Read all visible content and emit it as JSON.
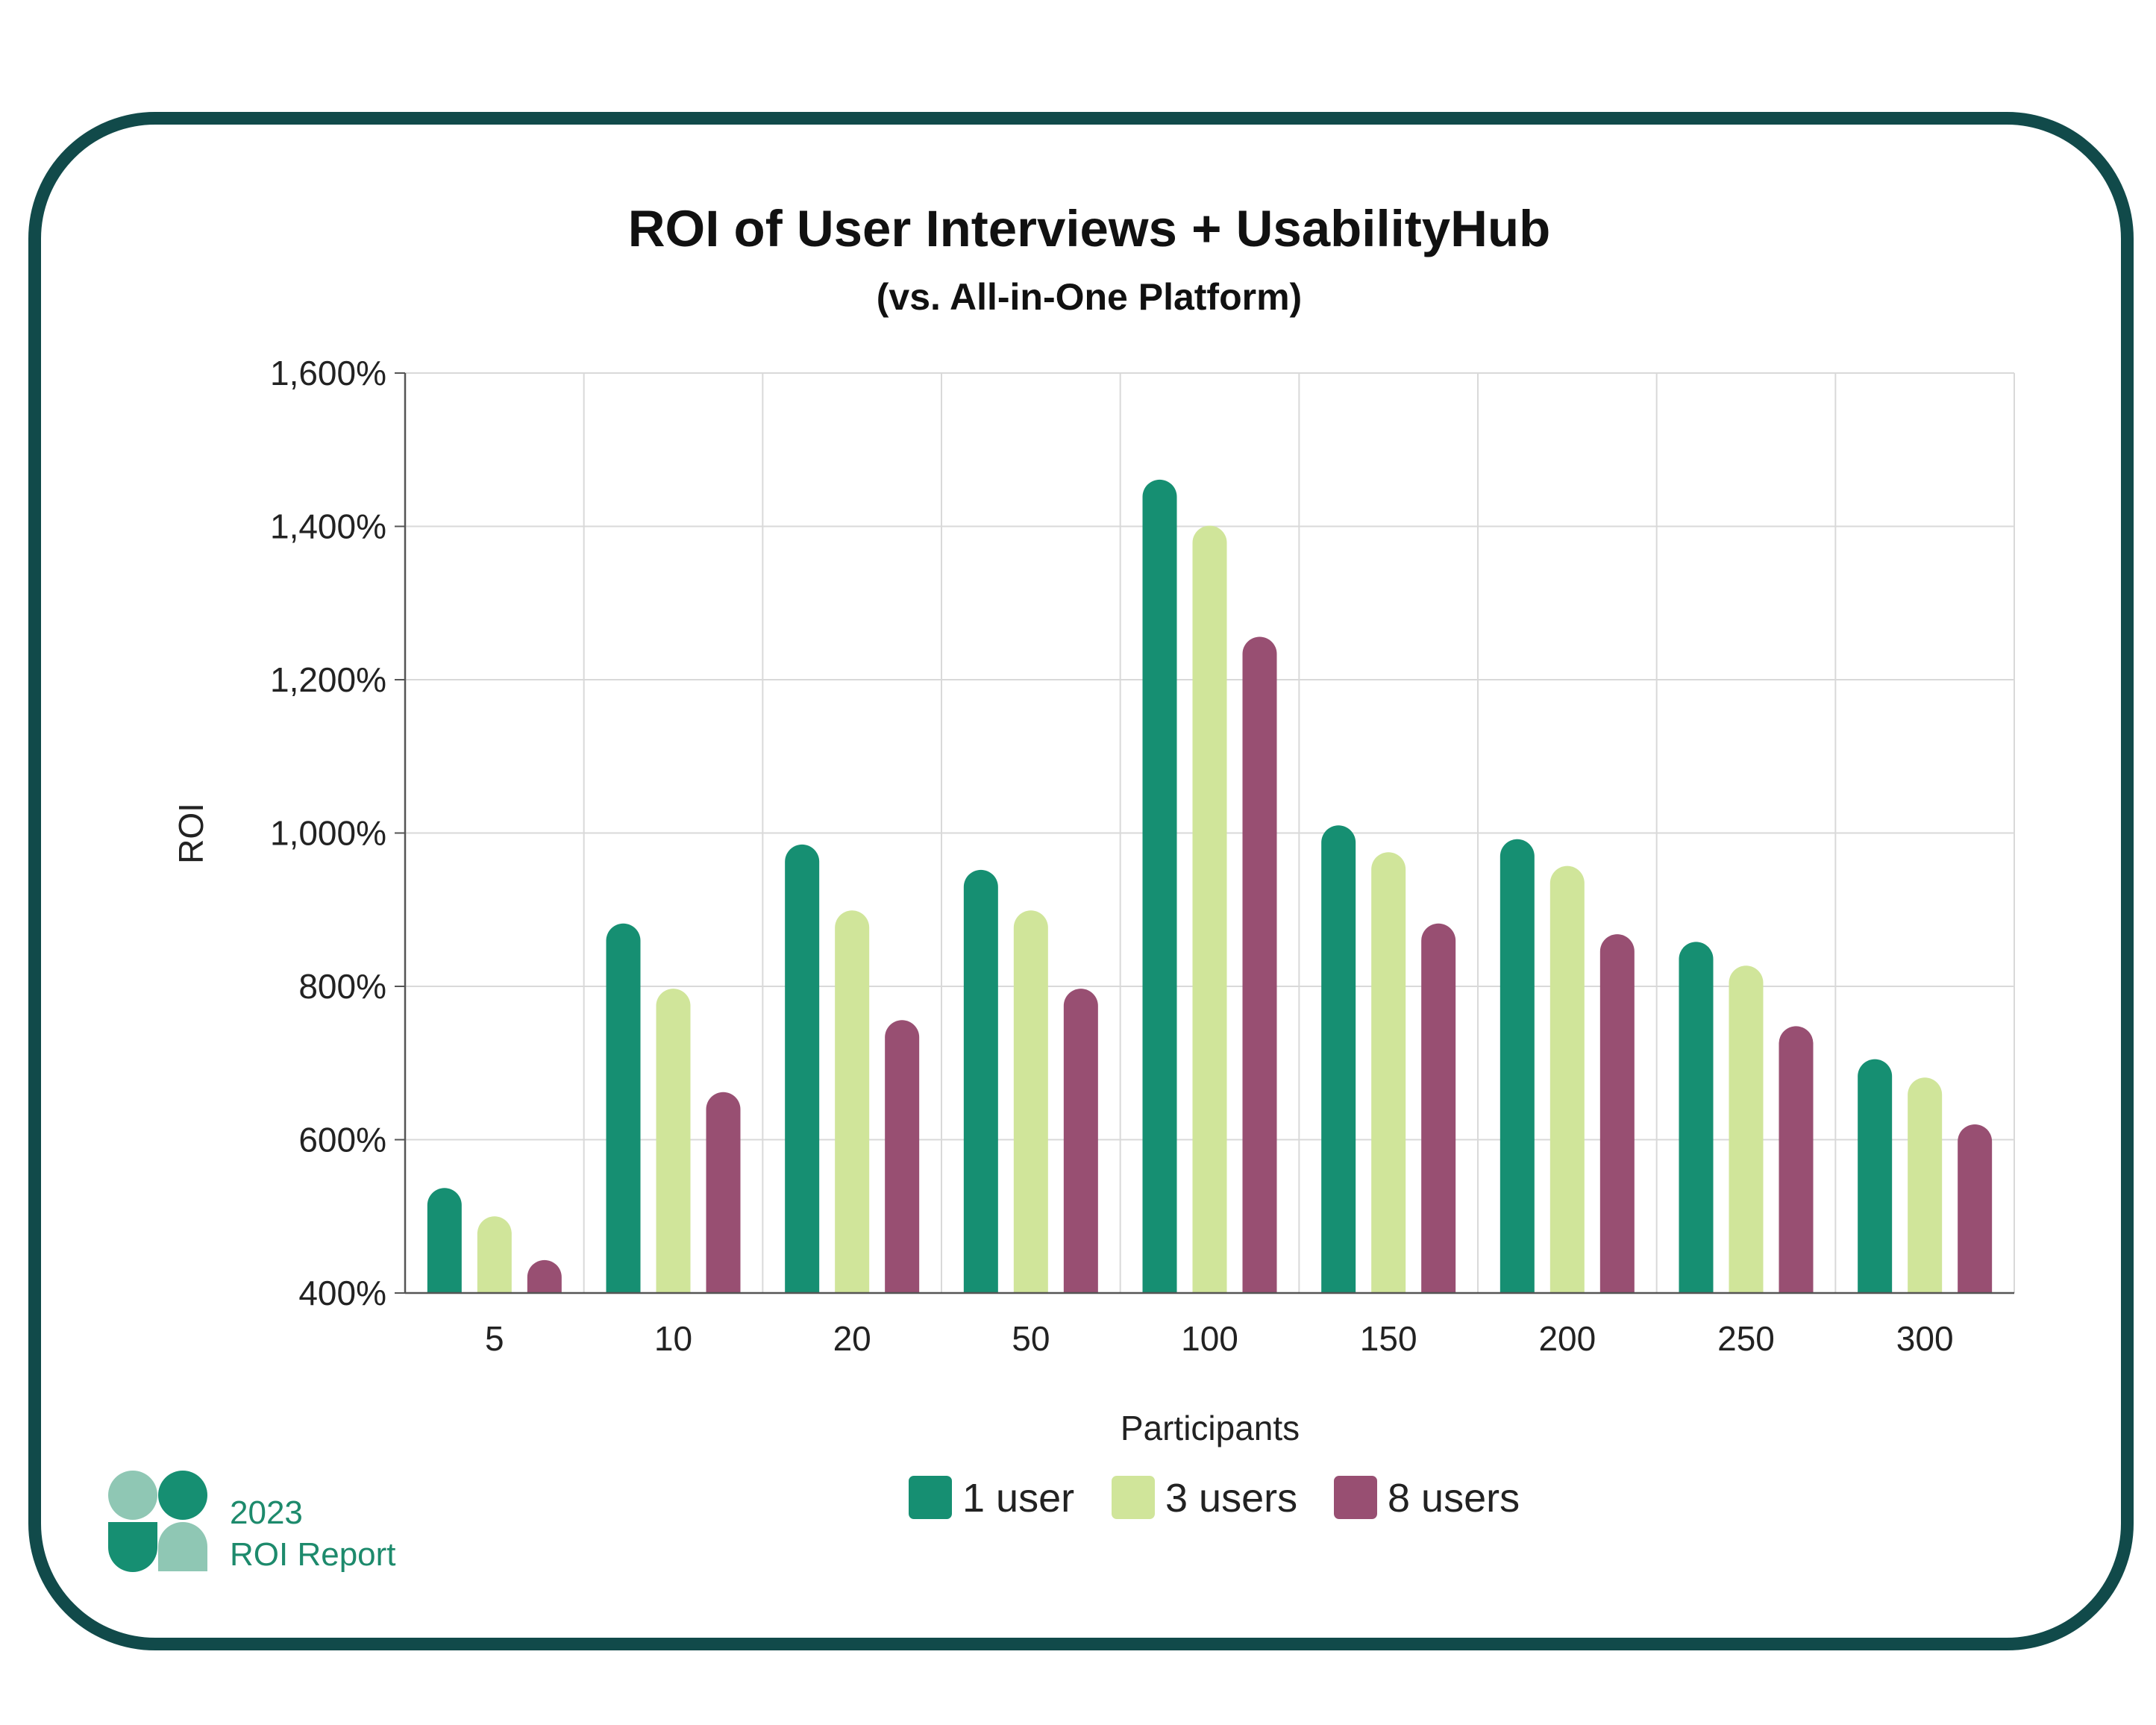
{
  "chart_data": {
    "type": "bar",
    "title": "ROI of User Interviews + UsabilityHub",
    "subtitle": "(vs. All-in-One Platform)",
    "xlabel": "Participants",
    "ylabel": "ROI",
    "ylim": [
      400,
      1600
    ],
    "yticks": [
      "1,600%",
      "1,400%",
      "1,200%",
      "1,000%",
      "800%",
      "600%",
      "400%"
    ],
    "categories": [
      "5",
      "10",
      "20",
      "50",
      "100",
      "150",
      "200",
      "250",
      "300"
    ],
    "grid": true,
    "legend_position": "bottom",
    "series": [
      {
        "name": "1 user",
        "color": "#168f72",
        "values": [
          537,
          882,
          985,
          952,
          1461,
          1010,
          992,
          858,
          705
        ]
      },
      {
        "name": "3 users",
        "color": "#d0e59a",
        "values": [
          500,
          797,
          899,
          899,
          1401,
          975,
          957,
          827,
          681
        ]
      },
      {
        "name": "8 users",
        "color": "#984f72",
        "values": [
          443,
          662,
          756,
          797,
          1256,
          882,
          868,
          748,
          620
        ]
      }
    ]
  },
  "branding": {
    "year": "2023",
    "report": "ROI Report",
    "logo_colors": [
      "#8fc7b4",
      "#168f72"
    ]
  }
}
